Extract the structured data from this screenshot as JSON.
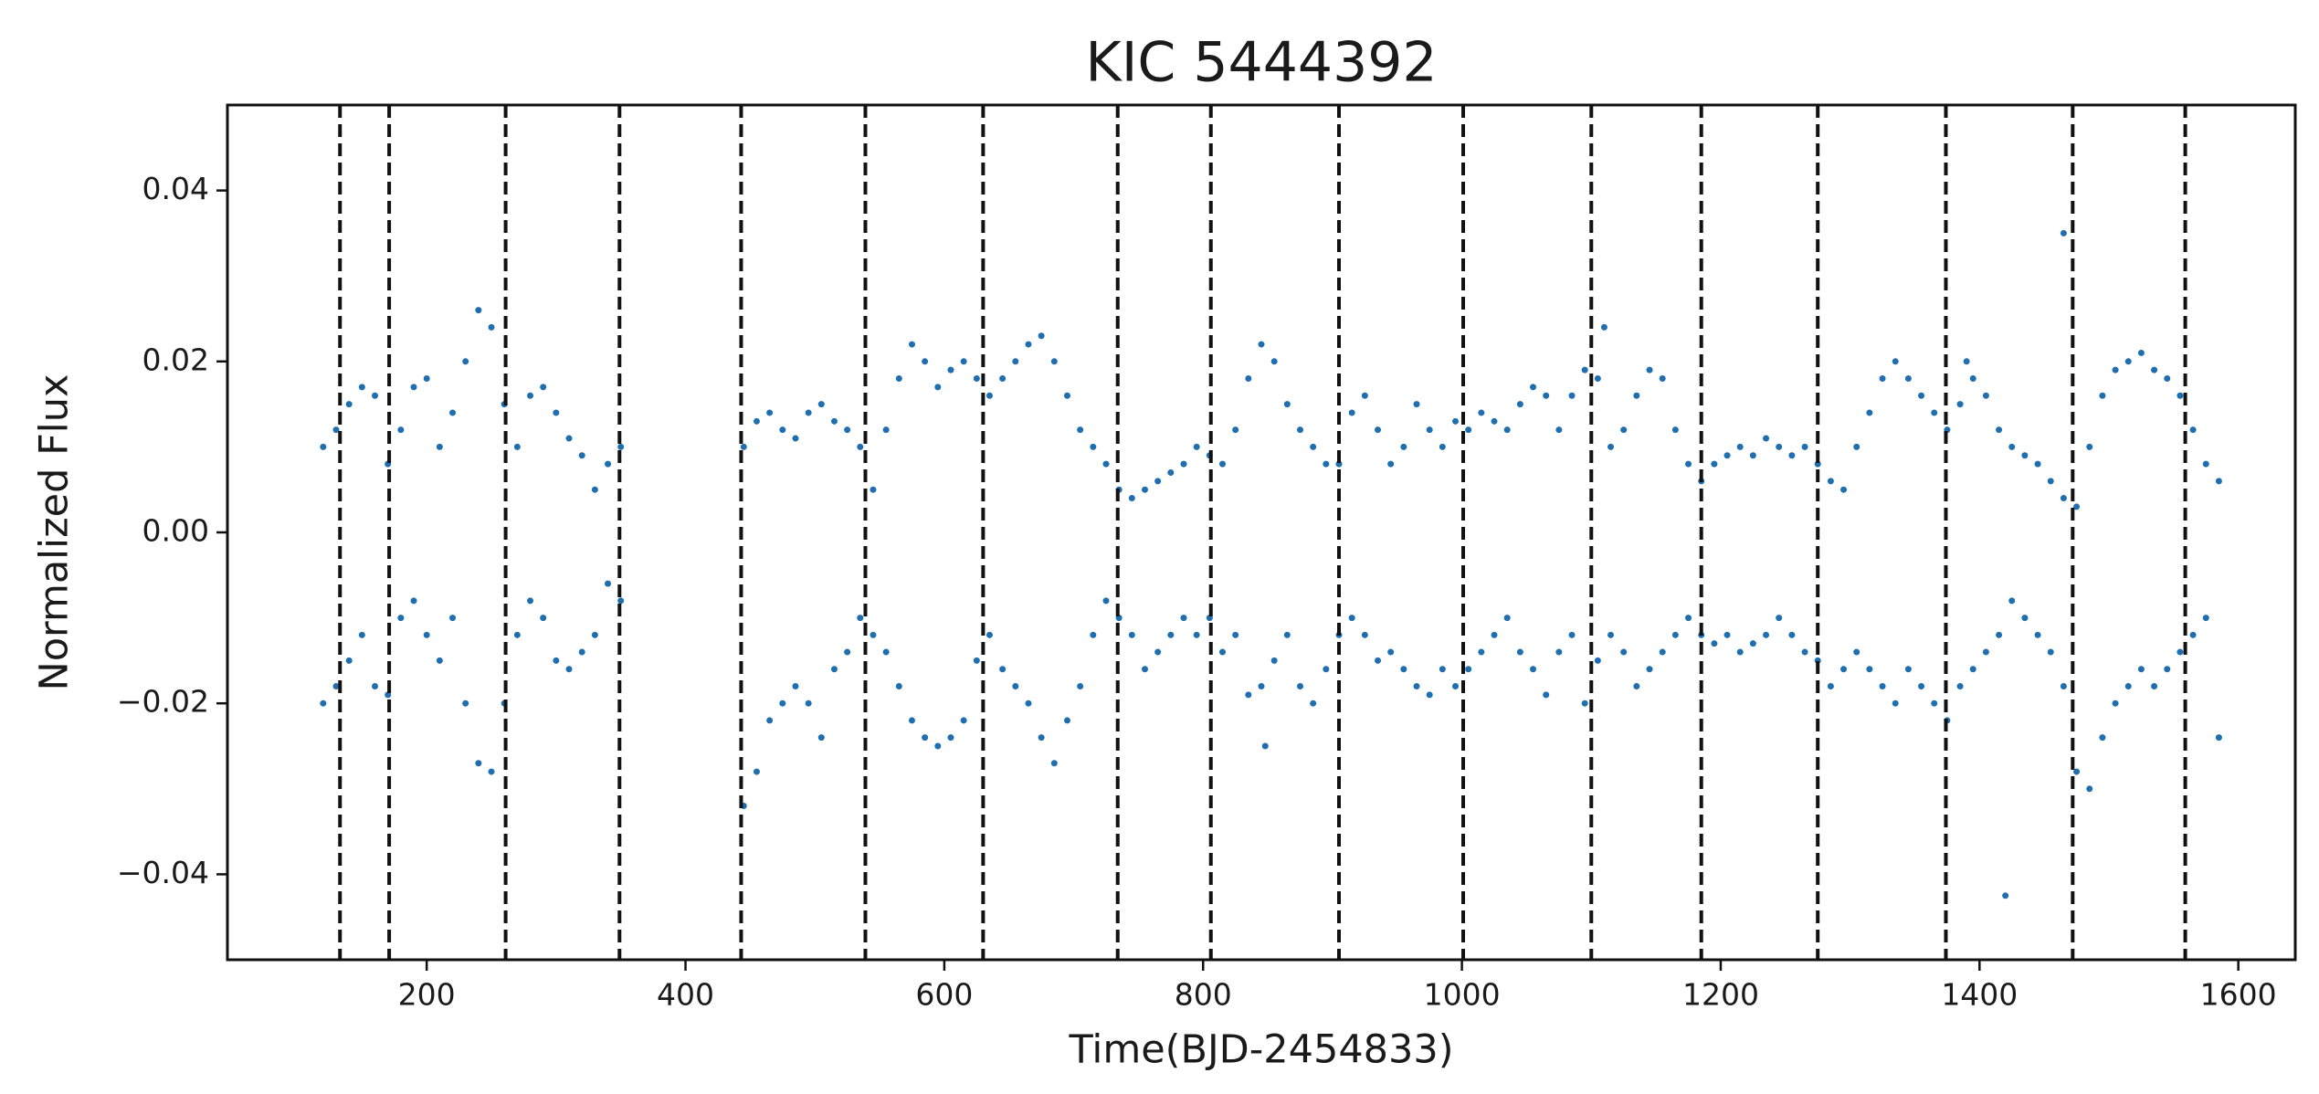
{
  "chart_data": {
    "type": "scatter",
    "title": "KIC 5444392",
    "xlabel": "Time(BJD-2454833)",
    "ylabel": "Normalized Flux",
    "color": "#1f6fb0",
    "vline_color": "#111111",
    "xlim": [
      46,
      1644
    ],
    "ylim": [
      -0.05,
      0.05
    ],
    "xticks": [
      200,
      400,
      600,
      800,
      1000,
      1200,
      1400,
      1600
    ],
    "yticks": [
      {
        "value": -0.04,
        "label": "−0.04"
      },
      {
        "value": -0.02,
        "label": "−0.02"
      },
      {
        "value": 0,
        "label": "0.00"
      },
      0.02,
      0.04
    ],
    "vlines": [
      133,
      171,
      261,
      349,
      443,
      539,
      630,
      734,
      806,
      905,
      1001,
      1100,
      1185,
      1275,
      1374,
      1472,
      1559
    ],
    "x": [
      120,
      120,
      130,
      130,
      140,
      140,
      150,
      150,
      160,
      160,
      170,
      170,
      180,
      180,
      190,
      190,
      200,
      200,
      210,
      210,
      220,
      220,
      230,
      230,
      240,
      240,
      250,
      250,
      260,
      260,
      270,
      270,
      280,
      280,
      290,
      290,
      300,
      300,
      310,
      310,
      320,
      320,
      330,
      330,
      340,
      340,
      350,
      350,
      445,
      445,
      455,
      455,
      465,
      465,
      475,
      475,
      485,
      485,
      495,
      495,
      505,
      505,
      515,
      515,
      525,
      525,
      535,
      535,
      545,
      545,
      555,
      555,
      565,
      565,
      575,
      575,
      585,
      585,
      595,
      595,
      605,
      605,
      615,
      615,
      625,
      625,
      635,
      635,
      645,
      645,
      655,
      655,
      665,
      665,
      675,
      675,
      685,
      685,
      695,
      695,
      705,
      705,
      715,
      715,
      725,
      725,
      735,
      735,
      745,
      745,
      755,
      755,
      765,
      765,
      775,
      775,
      785,
      785,
      795,
      795,
      805,
      805,
      815,
      815,
      825,
      825,
      835,
      835,
      845,
      845,
      855,
      855,
      865,
      865,
      875,
      875,
      885,
      885,
      895,
      895,
      905,
      905,
      915,
      915,
      925,
      925,
      935,
      935,
      945,
      945,
      955,
      955,
      965,
      965,
      975,
      975,
      985,
      985,
      995,
      995,
      1005,
      1005,
      1015,
      1015,
      1025,
      1025,
      1035,
      1035,
      1045,
      1045,
      1055,
      1055,
      1065,
      1065,
      1075,
      1075,
      1085,
      1085,
      1095,
      1095,
      1105,
      1105,
      1115,
      1115,
      1125,
      1125,
      1135,
      1135,
      1145,
      1145,
      1155,
      1155,
      1165,
      1165,
      1175,
      1175,
      1185,
      1185,
      1195,
      1195,
      1205,
      1205,
      1215,
      1215,
      1225,
      1225,
      1235,
      1235,
      1245,
      1245,
      1255,
      1255,
      1265,
      1265,
      1275,
      1275,
      1285,
      1285,
      1295,
      1295,
      1305,
      1305,
      1315,
      1315,
      1325,
      1325,
      1335,
      1335,
      1345,
      1345,
      1355,
      1355,
      1365,
      1365,
      1375,
      1375,
      1385,
      1385,
      1395,
      1395,
      1405,
      1405,
      1415,
      1415,
      1425,
      1425,
      1435,
      1435,
      1445,
      1445,
      1455,
      1455,
      1465,
      1465,
      1475,
      1475,
      1485,
      1485,
      1495,
      1495,
      1505,
      1505,
      1515,
      1515,
      1525,
      1525,
      1535,
      1535,
      1545,
      1545,
      1555,
      1555,
      1565,
      1565,
      1575,
      1575,
      1585,
      1585,
      848,
      1420,
      1465,
      1110,
      1390
    ],
    "y": [
      0.01,
      -0.02,
      0.012,
      -0.018,
      0.015,
      -0.015,
      0.017,
      -0.012,
      0.016,
      -0.018,
      0.008,
      -0.019,
      0.012,
      -0.01,
      0.017,
      -0.008,
      0.018,
      -0.012,
      0.01,
      -0.015,
      0.014,
      -0.01,
      0.02,
      -0.02,
      0.026,
      -0.027,
      0.024,
      -0.028,
      0.015,
      -0.02,
      0.01,
      -0.012,
      0.016,
      -0.008,
      0.017,
      -0.01,
      0.014,
      -0.015,
      0.011,
      -0.016,
      0.009,
      -0.014,
      0.005,
      -0.012,
      0.008,
      -0.006,
      0.01,
      -0.008,
      0.01,
      -0.032,
      0.013,
      -0.028,
      0.014,
      -0.022,
      0.012,
      -0.02,
      0.011,
      -0.018,
      0.014,
      -0.02,
      0.015,
      -0.024,
      0.013,
      -0.016,
      0.012,
      -0.014,
      0.01,
      -0.01,
      0.005,
      -0.012,
      0.012,
      -0.014,
      0.018,
      -0.018,
      0.022,
      -0.022,
      0.02,
      -0.024,
      0.017,
      -0.025,
      0.019,
      -0.024,
      0.02,
      -0.022,
      0.018,
      -0.015,
      0.016,
      -0.012,
      0.018,
      -0.016,
      0.02,
      -0.018,
      0.022,
      -0.02,
      0.023,
      -0.024,
      0.02,
      -0.027,
      0.016,
      -0.022,
      0.012,
      -0.018,
      0.01,
      -0.012,
      0.008,
      -0.008,
      0.005,
      -0.01,
      0.004,
      -0.012,
      0.005,
      -0.016,
      0.006,
      -0.014,
      0.007,
      -0.012,
      0.008,
      -0.01,
      0.01,
      -0.012,
      0.009,
      -0.01,
      0.008,
      -0.014,
      0.012,
      -0.012,
      0.018,
      -0.019,
      0.022,
      -0.018,
      0.02,
      -0.015,
      0.015,
      -0.012,
      0.012,
      -0.018,
      0.01,
      -0.02,
      0.008,
      -0.016,
      0.008,
      -0.012,
      0.014,
      -0.01,
      0.016,
      -0.012,
      0.012,
      -0.015,
      0.008,
      -0.014,
      0.01,
      -0.016,
      0.015,
      -0.018,
      0.012,
      -0.019,
      0.01,
      -0.016,
      0.013,
      -0.018,
      0.012,
      -0.016,
      0.014,
      -0.014,
      0.013,
      -0.012,
      0.012,
      -0.01,
      0.015,
      -0.014,
      0.017,
      -0.016,
      0.016,
      -0.019,
      0.012,
      -0.014,
      0.016,
      -0.012,
      0.019,
      -0.02,
      0.018,
      -0.015,
      0.01,
      -0.012,
      0.012,
      -0.014,
      0.016,
      -0.018,
      0.019,
      -0.016,
      0.018,
      -0.014,
      0.012,
      -0.012,
      0.008,
      -0.01,
      0.006,
      -0.012,
      0.008,
      -0.013,
      0.009,
      -0.012,
      0.01,
      -0.014,
      0.009,
      -0.013,
      0.011,
      -0.012,
      0.01,
      -0.01,
      0.009,
      -0.012,
      0.01,
      -0.014,
      0.008,
      -0.015,
      0.006,
      -0.018,
      0.005,
      -0.016,
      0.01,
      -0.014,
      0.014,
      -0.016,
      0.018,
      -0.018,
      0.02,
      -0.02,
      0.018,
      -0.016,
      0.016,
      -0.018,
      0.014,
      -0.02,
      0.012,
      -0.022,
      0.015,
      -0.018,
      0.018,
      -0.016,
      0.016,
      -0.014,
      0.012,
      -0.012,
      0.01,
      -0.008,
      0.009,
      -0.01,
      0.008,
      -0.012,
      0.006,
      -0.014,
      0.004,
      -0.018,
      0.003,
      -0.028,
      0.01,
      -0.03,
      0.016,
      -0.024,
      0.019,
      -0.02,
      0.02,
      -0.018,
      0.021,
      -0.016,
      0.019,
      -0.018,
      0.018,
      -0.016,
      0.016,
      -0.014,
      0.012,
      -0.012,
      0.008,
      -0.01,
      0.006,
      -0.024,
      -0.025,
      -0.0425,
      0.035,
      0.024,
      0.02
    ]
  }
}
